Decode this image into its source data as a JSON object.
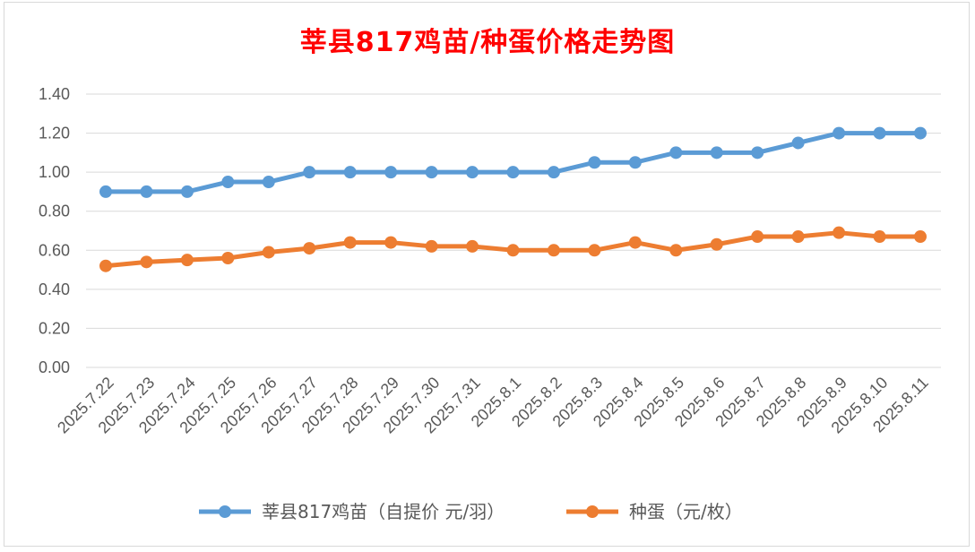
{
  "chart_data": {
    "type": "line",
    "title": "莘县817鸡苗/种蛋价格走势图",
    "categories": [
      "2025.7.22",
      "2025.7.23",
      "2025.7.24",
      "2025.7.25",
      "2025.7.26",
      "2025.7.27",
      "2025.7.28",
      "2025.7.29",
      "2025.7.30",
      "2025.7.31",
      "2025.8.1",
      "2025.8.2",
      "2025.8.3",
      "2025.8.4",
      "2025.8.5",
      "2025.8.6",
      "2025.8.7",
      "2025.8.8",
      "2025.8.9",
      "2025.8.10",
      "2025.8.11"
    ],
    "ylim": [
      0,
      1.4
    ],
    "yticks": [
      "0.00",
      "0.20",
      "0.40",
      "0.60",
      "0.80",
      "1.00",
      "1.20",
      "1.40"
    ],
    "grid": true,
    "legend_position": "bottom",
    "series": [
      {
        "name": "莘县817鸡苗（自提价 元/羽）",
        "color": "#5b9bd5",
        "values": [
          0.9,
          0.9,
          0.9,
          0.95,
          0.95,
          1.0,
          1.0,
          1.0,
          1.0,
          1.0,
          1.0,
          1.0,
          1.05,
          1.05,
          1.1,
          1.1,
          1.1,
          1.15,
          1.2,
          1.2,
          1.2
        ]
      },
      {
        "name": "种蛋（元/枚）",
        "color": "#ed7d31",
        "values": [
          0.52,
          0.54,
          0.55,
          0.56,
          0.59,
          0.61,
          0.64,
          0.64,
          0.62,
          0.62,
          0.6,
          0.6,
          0.6,
          0.64,
          0.6,
          0.63,
          0.67,
          0.67,
          0.69,
          0.67,
          0.67
        ]
      }
    ]
  }
}
